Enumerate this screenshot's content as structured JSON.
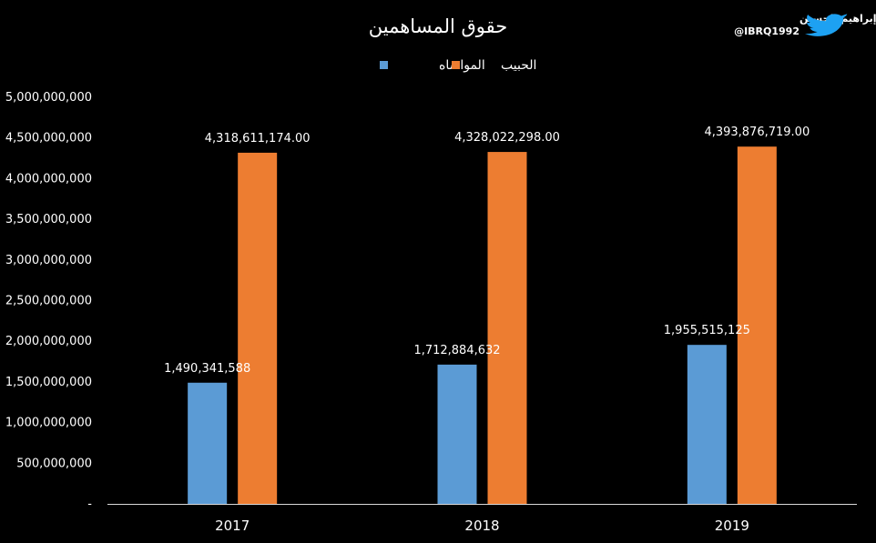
{
  "branding": {
    "name": "إبراهيم الحسين",
    "handle": "@IBRQ1992",
    "icon": "twitter-bird-icon",
    "icon_color": "#1da1f2"
  },
  "chart_data": {
    "type": "bar",
    "title": "حقوق المساهمين",
    "categories": [
      "2017",
      "2018",
      "2019"
    ],
    "series": [
      {
        "name": "المواساه",
        "color": "#5b9bd5",
        "values": [
          1490341588,
          1712884632,
          1955515125
        ],
        "labels": [
          "1,490,341,588",
          "1,712,884,632",
          "1,955,515,125"
        ]
      },
      {
        "name": "الحبيب",
        "color": "#ed7d31",
        "values": [
          4318611174,
          4328022298,
          4393876719
        ],
        "labels": [
          "4,318,611,174.00",
          "4,328,022,298.00",
          "4,393,876,719.00"
        ]
      }
    ],
    "ylim": [
      0,
      5000000000
    ],
    "yticks": [
      {
        "value": 0,
        "label": "-"
      },
      {
        "value": 500000000,
        "label": "500,000,000"
      },
      {
        "value": 1000000000,
        "label": "1,000,000,000"
      },
      {
        "value": 1500000000,
        "label": "1,500,000,000"
      },
      {
        "value": 2000000000,
        "label": "2,000,000,000"
      },
      {
        "value": 2500000000,
        "label": "2,500,000,000"
      },
      {
        "value": 3000000000,
        "label": "3,000,000,000"
      },
      {
        "value": 3500000000,
        "label": "3,500,000,000"
      },
      {
        "value": 4000000000,
        "label": "4,000,000,000"
      },
      {
        "value": 4500000000,
        "label": "4,500,000,000"
      },
      {
        "value": 5000000000,
        "label": "5,000,000,000"
      }
    ],
    "legend_position": "top",
    "grid": false
  }
}
